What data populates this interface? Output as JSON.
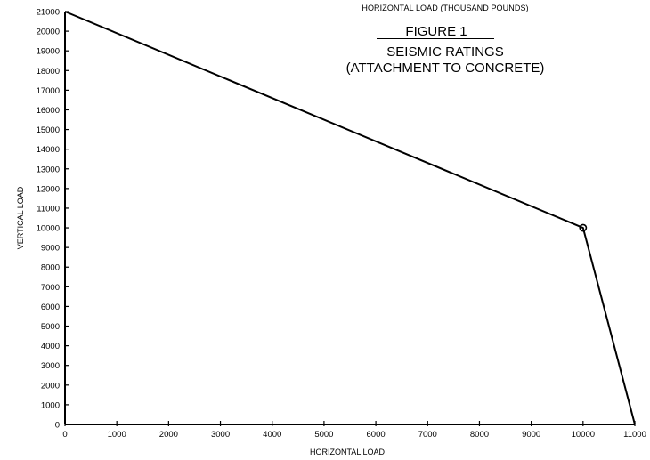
{
  "header": {
    "top_caption": "HORIZONTAL LOAD (THOUSAND POUNDS)",
    "figure_label": "FIGURE 1",
    "title_line_1": "SEISMIC RATINGS",
    "title_line_2": "(ATTACHMENT TO CONCRETE)"
  },
  "colors": {
    "line": "#000000",
    "background": "#ffffff"
  },
  "chart_data": {
    "type": "line",
    "title": "SEISMIC RATINGS (ATTACHMENT TO CONCRETE)",
    "xlabel": "HORIZONTAL LOAD",
    "ylabel": "VERTICAL LOAD",
    "xlim": [
      0,
      11000
    ],
    "ylim": [
      0,
      21000
    ],
    "x_ticks": [
      0,
      1000,
      2000,
      3000,
      4000,
      5000,
      6000,
      7000,
      8000,
      9000,
      10000,
      11000
    ],
    "y_ticks": [
      0,
      1000,
      2000,
      3000,
      4000,
      5000,
      6000,
      7000,
      8000,
      9000,
      10000,
      11000,
      12000,
      13000,
      14000,
      15000,
      16000,
      17000,
      18000,
      19000,
      20000,
      21000
    ],
    "grid": false,
    "series": [
      {
        "x": [
          0,
          10000,
          11000
        ],
        "y": [
          21000,
          10000,
          0
        ]
      }
    ],
    "markers": [
      {
        "x": 10000,
        "y": 10000,
        "shape": "circle"
      }
    ]
  }
}
